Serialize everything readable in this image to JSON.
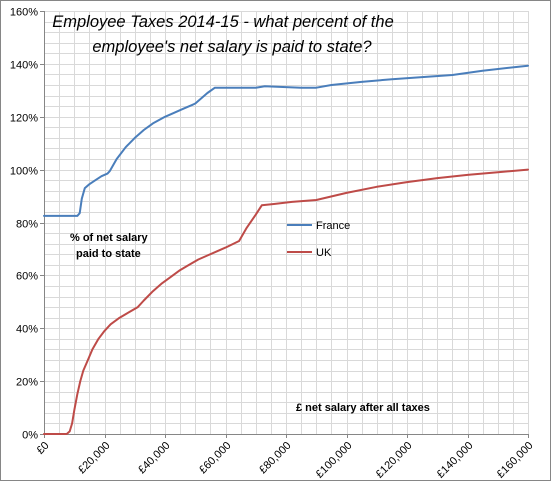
{
  "chart_data": {
    "type": "line",
    "title_lines": [
      "Employee Taxes 2014-15 - what percent of the",
      "employee's net salary is paid to state?"
    ],
    "xlabel": "",
    "ylabel": "",
    "annotation_ylabel": [
      "% of net salary",
      "paid to state"
    ],
    "annotation_xlabel": "£ net salary after all taxes",
    "xlim": [
      0,
      160000
    ],
    "ylim": [
      0,
      160
    ],
    "x_ticks": [
      0,
      20000,
      40000,
      60000,
      80000,
      100000,
      120000,
      140000,
      160000
    ],
    "x_tick_labels": [
      "£0",
      "£20,000",
      "£40,000",
      "£60,000",
      "£80,000",
      "£100,000",
      "£120,000",
      "£140,000",
      "£160,000"
    ],
    "y_ticks": [
      0,
      20,
      40,
      60,
      80,
      100,
      120,
      140,
      160
    ],
    "y_tick_labels": [
      "0%",
      "20%",
      "40%",
      "60%",
      "80%",
      "100%",
      "120%",
      "140%",
      "160%"
    ],
    "grid": true,
    "legend_position": "center-right",
    "series": [
      {
        "name": "France",
        "color": "#4a7ebb",
        "points": [
          [
            0,
            82.5
          ],
          [
            11000,
            82.5
          ],
          [
            11800,
            83.5
          ],
          [
            12500,
            89
          ],
          [
            13500,
            93
          ],
          [
            15000,
            94.5
          ],
          [
            17000,
            96
          ],
          [
            19000,
            97.5
          ],
          [
            21000,
            98.5
          ],
          [
            21800,
            99.5
          ],
          [
            24000,
            104
          ],
          [
            27000,
            108.5
          ],
          [
            30000,
            112
          ],
          [
            33000,
            115
          ],
          [
            36000,
            117.5
          ],
          [
            40000,
            120
          ],
          [
            43000,
            121.5
          ],
          [
            46000,
            123
          ],
          [
            49000,
            124.5
          ],
          [
            50000,
            125
          ],
          [
            54000,
            129
          ],
          [
            56500,
            131
          ],
          [
            61000,
            131
          ],
          [
            66000,
            131
          ],
          [
            70000,
            131
          ],
          [
            73000,
            131.5
          ],
          [
            78000,
            131.3
          ],
          [
            85000,
            131
          ],
          [
            90000,
            131
          ],
          [
            95000,
            132
          ],
          [
            105000,
            133.2
          ],
          [
            115000,
            134.2
          ],
          [
            125000,
            135
          ],
          [
            135000,
            135.8
          ],
          [
            145000,
            137.4
          ],
          [
            160000,
            139.3
          ]
        ]
      },
      {
        "name": "UK",
        "color": "#be4b48",
        "points": [
          [
            0,
            0
          ],
          [
            7500,
            0
          ],
          [
            8500,
            1
          ],
          [
            9300,
            4
          ],
          [
            10000,
            9
          ],
          [
            11000,
            15
          ],
          [
            12000,
            20
          ],
          [
            13000,
            24
          ],
          [
            14500,
            28
          ],
          [
            16000,
            32
          ],
          [
            18000,
            36
          ],
          [
            20000,
            39
          ],
          [
            22000,
            41.5
          ],
          [
            25000,
            44
          ],
          [
            28000,
            46
          ],
          [
            31000,
            48
          ],
          [
            33000,
            50.5
          ],
          [
            36000,
            54
          ],
          [
            39000,
            57
          ],
          [
            42000,
            59.5
          ],
          [
            45000,
            62
          ],
          [
            48000,
            64
          ],
          [
            51000,
            66
          ],
          [
            54000,
            67.5
          ],
          [
            57000,
            69
          ],
          [
            60000,
            70.5
          ],
          [
            64500,
            73
          ],
          [
            67000,
            78
          ],
          [
            70000,
            83
          ],
          [
            72000,
            86.5
          ],
          [
            76000,
            87
          ],
          [
            82000,
            87.8
          ],
          [
            90000,
            88.5
          ],
          [
            100000,
            91.2
          ],
          [
            110000,
            93.5
          ],
          [
            120000,
            95.3
          ],
          [
            130000,
            96.8
          ],
          [
            140000,
            98
          ],
          [
            150000,
            99
          ],
          [
            160000,
            100
          ]
        ]
      }
    ]
  }
}
